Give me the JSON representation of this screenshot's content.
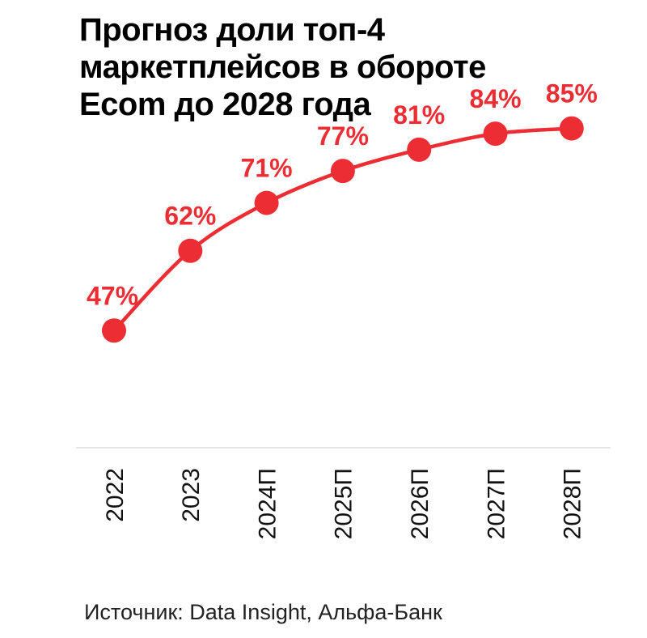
{
  "title_lines": [
    "Прогноз доли топ-4",
    "маркетплейсов в обороте",
    "Ecom до 2028 года"
  ],
  "source": "Источник: Data Insight, Альфа-Банк",
  "colors": {
    "series": "#ec2e34",
    "axis": "#dddddd",
    "tick_text": "#111111"
  },
  "chart_data": {
    "type": "line",
    "title": "Прогноз доли топ-4 маркетплейсов в обороте Ecom до 2028 года",
    "categories": [
      "2022",
      "2023",
      "2024П",
      "2025П",
      "2026П",
      "2027П",
      "2028П"
    ],
    "series": [
      {
        "values": [
          47,
          62,
          71,
          77,
          81,
          84,
          85
        ],
        "data_labels": [
          "47%",
          "62%",
          "71%",
          "77%",
          "81%",
          "84%",
          "85%"
        ]
      }
    ],
    "ylim": [
      30,
      100
    ],
    "xlabel": "",
    "ylabel": "",
    "grid": false,
    "legend": "none",
    "tick_label_orientation": "vertical"
  }
}
